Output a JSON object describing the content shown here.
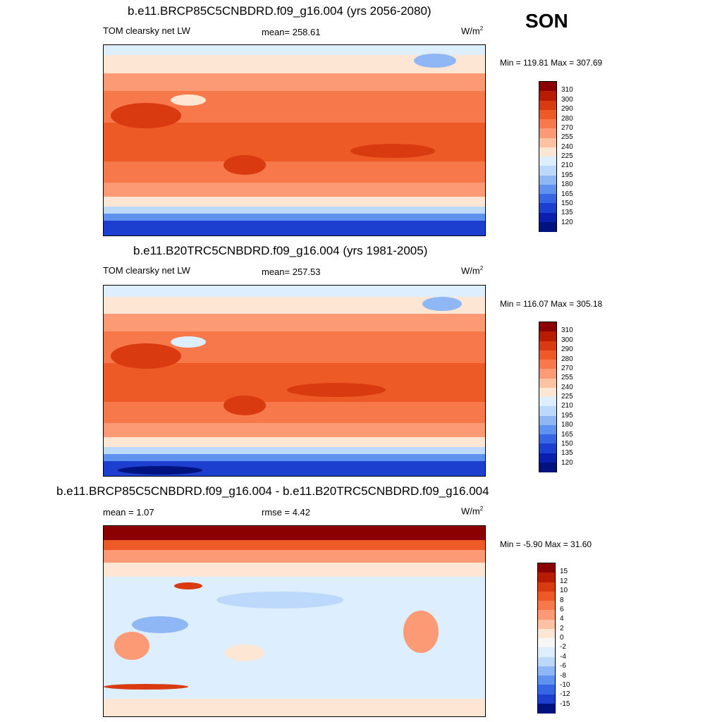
{
  "season": "SON",
  "panels": [
    {
      "title": "b.e11.BRCP85C5CNBDRD.f09_g16.004 (yrs 2056-2080)",
      "left_label": "TOM clearsky net LW",
      "center_label": "mean= 258.61",
      "units": "W/m",
      "units_sup": "2",
      "minmax": "Min = 119.81 Max = 307.69"
    },
    {
      "title": "b.e11.B20TRC5CNBDRD.f09_g16.004 (yrs 1981-2005)",
      "left_label": "TOM clearsky net LW",
      "center_label": "mean= 257.53",
      "units": "W/m",
      "units_sup": "2",
      "minmax": "Min = 116.07 Max = 305.18"
    },
    {
      "title": "b.e11.BRCP85C5CNBDRD.f09_g16.004 - b.e11.B20TRC5CNBDRD.f09_g16.004",
      "left_label": "mean =   1.07",
      "center_label": "rmse =   4.42",
      "units": "W/m",
      "units_sup": "2",
      "minmax": "Min =  -5.90 Max =  31.60"
    }
  ],
  "chart_data": [
    {
      "type": "heatmap",
      "title": "b.e11.BRCP85C5CNBDRD.f09_g16.004 (yrs 2056-2080)",
      "variable": "TOM clearsky net LW",
      "mean": 258.61,
      "min": 119.81,
      "max": 307.69,
      "colorbar_levels": [
        310,
        300,
        290,
        280,
        270,
        255,
        240,
        225,
        210,
        195,
        180,
        165,
        150,
        135,
        120
      ]
    },
    {
      "type": "heatmap",
      "title": "b.e11.B20TRC5CNBDRD.f09_g16.004 (yrs 1981-2005)",
      "variable": "TOM clearsky net LW",
      "mean": 257.53,
      "min": 116.07,
      "max": 305.18,
      "colorbar_levels": [
        310,
        300,
        290,
        280,
        270,
        255,
        240,
        225,
        210,
        195,
        180,
        165,
        150,
        135,
        120
      ]
    },
    {
      "type": "heatmap",
      "title": "b.e11.BRCP85C5CNBDRD.f09_g16.004 - b.e11.B20TRC5CNBDRD.f09_g16.004",
      "mean": 1.07,
      "rmse": 4.42,
      "min": -5.9,
      "max": 31.6,
      "colorbar_levels": [
        15,
        12,
        10,
        8,
        6,
        4,
        2,
        0,
        -2,
        -4,
        -6,
        -8,
        -10,
        -12,
        -15
      ]
    }
  ],
  "colors": {
    "abs_scale": [
      "#8b0000",
      "#b81c00",
      "#d93a10",
      "#ee5a26",
      "#f7784a",
      "#fb9a74",
      "#fdc2a4",
      "#fde6d4",
      "#ddeeff",
      "#bcd8fa",
      "#8fb7f5",
      "#5f92ee",
      "#3666e3",
      "#1d3fcf",
      "#0a1fae",
      "#00127e"
    ],
    "diff_scale": [
      "#8b0000",
      "#b81c00",
      "#d93a10",
      "#ee5a26",
      "#f7784a",
      "#fb9a74",
      "#fdc2a4",
      "#fde6d4",
      "#f7f7f7",
      "#ddeeff",
      "#bcd8fa",
      "#8fb7f5",
      "#5f92ee",
      "#3666e3",
      "#1d3fcf",
      "#00127e"
    ]
  }
}
